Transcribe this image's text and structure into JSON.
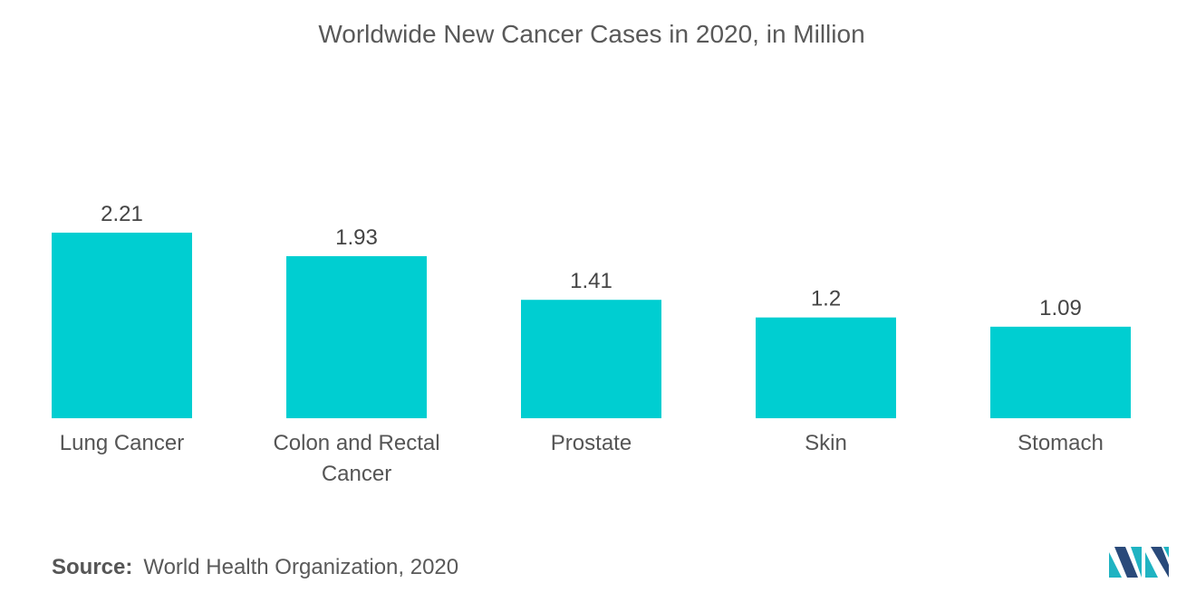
{
  "chart_data": {
    "type": "bar",
    "title": "Worldwide New Cancer Cases in 2020, in Million",
    "categories": [
      "Lung Cancer",
      "Colon and Rectal Cancer",
      "Prostate",
      "Skin",
      "Stomach"
    ],
    "category_lines": [
      [
        "Lung Cancer"
      ],
      [
        "Colon and Rectal",
        "Cancer"
      ],
      [
        "Prostate"
      ],
      [
        "Skin"
      ],
      [
        "Stomach"
      ]
    ],
    "values": [
      2.21,
      1.93,
      1.41,
      1.2,
      1.09
    ],
    "value_labels": [
      "2.21",
      "1.93",
      "1.41",
      "1.2",
      "1.09"
    ],
    "ylim": [
      0,
      2.21
    ],
    "grid": false,
    "legend": "none",
    "bar_color": "#00CED1"
  },
  "source": {
    "label": "Source:",
    "text": "World Health Organization, 2020"
  },
  "logo": {
    "icon": "mordor-intelligence-logo-icon",
    "colors": [
      "#1FB3C2",
      "#2A4A7A"
    ]
  }
}
